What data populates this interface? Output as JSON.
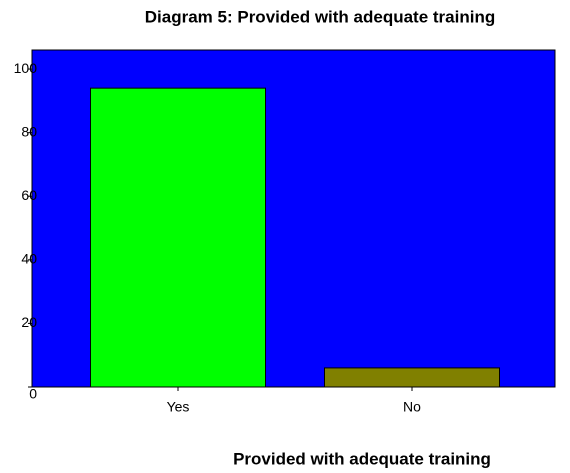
{
  "chart_data": {
    "type": "bar",
    "title": "Diagram 5: Provided with adequate training",
    "x_label": "Provided with adequate training",
    "categories": [
      "Yes",
      "No"
    ],
    "values": [
      94,
      6
    ],
    "colors": [
      "#00ff00",
      "#808000"
    ],
    "background": "#0000ff",
    "ylim": [
      0,
      106
    ],
    "yticks": [
      0,
      20,
      40,
      60,
      80,
      100
    ]
  }
}
